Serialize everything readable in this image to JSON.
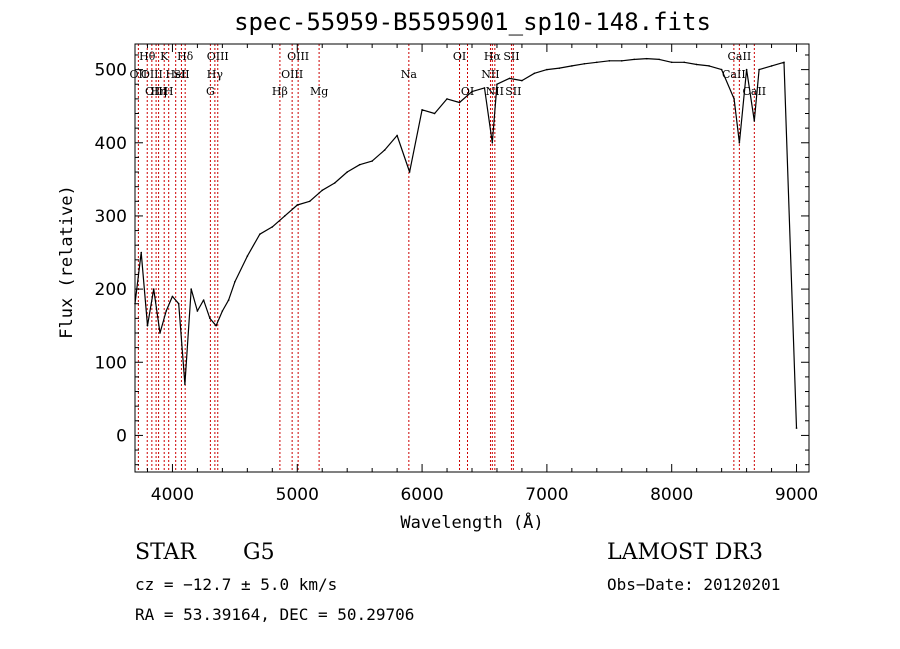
{
  "chart_data": {
    "type": "line",
    "title": "spec-55959-B5595901_sp10-148.fits",
    "xlabel": "Wavelength (Å)",
    "ylabel": "Flux (relative)",
    "xlim": [
      3700,
      9100
    ],
    "ylim": [
      -50,
      535
    ],
    "xticks": [
      4000,
      5000,
      6000,
      7000,
      8000,
      9000
    ],
    "yticks": [
      0,
      100,
      200,
      300,
      400,
      500
    ],
    "grid": false,
    "series": [
      {
        "line_color": "#000000",
        "x": [
          3700,
          3750,
          3800,
          3850,
          3900,
          3950,
          4000,
          4050,
          4100,
          4150,
          4200,
          4250,
          4300,
          4350,
          4400,
          4450,
          4500,
          4600,
          4700,
          4800,
          4900,
          5000,
          5100,
          5200,
          5300,
          5400,
          5500,
          5600,
          5700,
          5800,
          5900,
          6000,
          6100,
          6200,
          6300,
          6400,
          6500,
          6563,
          6600,
          6700,
          6800,
          6900,
          7000,
          7100,
          7200,
          7300,
          7400,
          7500,
          7600,
          7700,
          7800,
          7900,
          8000,
          8100,
          8200,
          8300,
          8400,
          8500,
          8542,
          8600,
          8662,
          8700,
          8800,
          8900,
          9000
        ],
        "y": [
          180,
          250,
          150,
          200,
          140,
          170,
          190,
          180,
          70,
          200,
          170,
          185,
          160,
          150,
          170,
          185,
          210,
          245,
          275,
          285,
          300,
          315,
          320,
          335,
          345,
          360,
          370,
          375,
          390,
          410,
          360,
          445,
          440,
          460,
          455,
          470,
          475,
          400,
          480,
          488,
          485,
          495,
          500,
          502,
          505,
          508,
          510,
          512,
          512,
          514,
          515,
          514,
          510,
          510,
          507,
          505,
          500,
          460,
          400,
          500,
          430,
          500,
          505,
          510,
          10
        ]
      }
    ],
    "line_markers": [
      {
        "x": 3727,
        "label": "OII",
        "row": 1
      },
      {
        "x": 3798,
        "label": "Hθ",
        "row": 0
      },
      {
        "x": 3835,
        "label": "OIII",
        "row": 1
      },
      {
        "x": 3869,
        "label": "OIII",
        "row": 2
      },
      {
        "x": 3889,
        "label": "Hη",
        "row": 2
      },
      {
        "x": 3934,
        "label": "K",
        "row": 0
      },
      {
        "x": 3970,
        "label": "H",
        "row": 2
      },
      {
        "x": 4026,
        "label": "HeI",
        "row": 1
      },
      {
        "x": 4072,
        "label": "SII",
        "row": 1
      },
      {
        "x": 4102,
        "label": "Hδ",
        "row": 0
      },
      {
        "x": 4304,
        "label": "G",
        "row": 2
      },
      {
        "x": 4340,
        "label": "Hγ",
        "row": 1
      },
      {
        "x": 4363,
        "label": "OIII",
        "row": 0
      },
      {
        "x": 4861,
        "label": "Hβ",
        "row": 2
      },
      {
        "x": 4959,
        "label": "OIII",
        "row": 1
      },
      {
        "x": 5007,
        "label": "OIII",
        "row": 0
      },
      {
        "x": 5175,
        "label": "Mg",
        "row": 2
      },
      {
        "x": 5894,
        "label": "Na",
        "row": 1
      },
      {
        "x": 6300,
        "label": "OI",
        "row": 0
      },
      {
        "x": 6364,
        "label": "OI",
        "row": 2
      },
      {
        "x": 6548,
        "label": "NII",
        "row": 1
      },
      {
        "x": 6563,
        "label": "Hα",
        "row": 0
      },
      {
        "x": 6583,
        "label": "NII",
        "row": 2
      },
      {
        "x": 6716,
        "label": "SII",
        "row": 0
      },
      {
        "x": 6731,
        "label": "SII",
        "row": 2
      },
      {
        "x": 8498,
        "label": "CaII",
        "row": 1
      },
      {
        "x": 8542,
        "label": "CaII",
        "row": 0
      },
      {
        "x": 8662,
        "label": "CaII",
        "row": 2
      }
    ]
  },
  "info": {
    "object_class": "STAR",
    "subclass": "G5",
    "survey": "LAMOST DR3",
    "velocity": "cz = −12.7 ± 5.0 km/s",
    "obs_date": "Obs−Date: 20120201",
    "coords": "RA =  53.39164, DEC =  50.29706"
  },
  "colors": {
    "background": "#ffffff",
    "axis": "#000000",
    "marker": "#cc0000"
  }
}
